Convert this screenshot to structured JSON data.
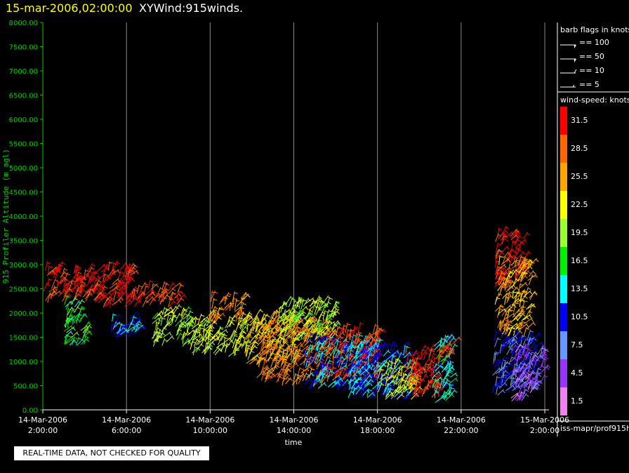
{
  "header": {
    "date_title": "15-mar-2006,02:00:00",
    "plot_title": "XYWind:915winds."
  },
  "notice": "REAL-TIME DATA, NOT CHECKED FOR QUALITY",
  "legend": {
    "barb_title": "barb flags in knots",
    "barbs": [
      {
        "label": "== 100",
        "icon": "pennant-barb-icon"
      },
      {
        "label": "== 50",
        "icon": "pennant-barb-icon"
      },
      {
        "label": "== 10",
        "icon": "full-barb-icon"
      },
      {
        "label": "== 5",
        "icon": "half-barb-icon"
      }
    ],
    "colorbar_title": "wind-speed: knots",
    "colorbar": [
      {
        "label": "31.5",
        "color": "#ff0000"
      },
      {
        "label": "28.5",
        "color": "#ff6600"
      },
      {
        "label": "25.5",
        "color": "#ffa500"
      },
      {
        "label": "22.5",
        "color": "#ffff00"
      },
      {
        "label": "19.5",
        "color": "#99ff33"
      },
      {
        "label": "16.5",
        "color": "#00ee00"
      },
      {
        "label": "13.5",
        "color": "#00ffff"
      },
      {
        "label": "10.5",
        "color": "#0000ff"
      },
      {
        "label": "7.5",
        "color": "#6699ff"
      },
      {
        "label": "4.5",
        "color": "#9933ff"
      },
      {
        "label": "1.5",
        "color": "#ee82ee"
      }
    ],
    "source": "iss-mapr/prof915h"
  },
  "chart_data": {
    "type": "scatter",
    "title": "XYWind:915winds.",
    "xlabel": "time",
    "ylabel": "915 Profiler Altitude (m agl)",
    "ylim": [
      0,
      8000
    ],
    "xlim_hours": [
      0,
      24.2
    ],
    "yticks": [
      "0.00",
      "500.00",
      "1000.00",
      "1500.00",
      "2000.00",
      "2500.00",
      "3000.00",
      "3500.00",
      "4000.00",
      "4500.00",
      "5000.00",
      "5500.00",
      "6000.00",
      "6500.00",
      "7000.00",
      "7500.00",
      "8000.00"
    ],
    "xticks": [
      {
        "hour": 0,
        "date": "14-Mar-2006",
        "time": "2:00:00"
      },
      {
        "hour": 4,
        "date": "14-Mar-2006",
        "time": "6:00:00"
      },
      {
        "hour": 8,
        "date": "14-Mar-2006",
        "time": "10:00:00"
      },
      {
        "hour": 12,
        "date": "14-Mar-2006",
        "time": "14:00:00"
      },
      {
        "hour": 16,
        "date": "14-Mar-2006",
        "time": "18:00:00"
      },
      {
        "hour": 20,
        "date": "14-Mar-2006",
        "time": "22:00:00"
      },
      {
        "hour": 24,
        "date": "15-Mar-2006",
        "time": "2:00:00"
      }
    ],
    "grid": "vertical",
    "wind_clusters": [
      {
        "t": [
          0.0,
          2.2
        ],
        "alt": [
          2200,
          2900
        ],
        "speed": 30
      },
      {
        "t": [
          2.2,
          4.3
        ],
        "alt": [
          2100,
          2900
        ],
        "speed": 31
      },
      {
        "t": [
          4.3,
          6.5
        ],
        "alt": [
          2100,
          2500
        ],
        "speed": 29
      },
      {
        "t": [
          1.0,
          2.0
        ],
        "alt": [
          1300,
          2200
        ],
        "speed": 17
      },
      {
        "t": [
          3.2,
          4.6
        ],
        "alt": [
          1500,
          1900
        ],
        "speed": 11
      },
      {
        "t": [
          5.2,
          7.0
        ],
        "alt": [
          1300,
          2000
        ],
        "speed": 20
      },
      {
        "t": [
          7.0,
          9.8
        ],
        "alt": [
          1100,
          1800
        ],
        "speed": 21
      },
      {
        "t": [
          7.9,
          9.5
        ],
        "alt": [
          1800,
          2300
        ],
        "speed": 26
      },
      {
        "t": [
          9.5,
          12.0
        ],
        "alt": [
          900,
          1900
        ],
        "speed": 23
      },
      {
        "t": [
          10.2,
          13.6
        ],
        "alt": [
          500,
          1800
        ],
        "speed": 27
      },
      {
        "t": [
          11.2,
          14.0
        ],
        "alt": [
          1400,
          2200
        ],
        "speed": 20
      },
      {
        "t": [
          12.5,
          15.5
        ],
        "alt": [
          400,
          1400
        ],
        "speed": 12
      },
      {
        "t": [
          13.5,
          16.0
        ],
        "alt": [
          600,
          1600
        ],
        "speed": 30
      },
      {
        "t": [
          14.5,
          17.5
        ],
        "alt": [
          200,
          1300
        ],
        "speed": 12
      },
      {
        "t": [
          16.0,
          17.9
        ],
        "alt": [
          200,
          900
        ],
        "speed": 22
      },
      {
        "t": [
          17.3,
          18.9
        ],
        "alt": [
          250,
          1200
        ],
        "speed": 31
      },
      {
        "t": [
          18.6,
          19.5
        ],
        "alt": [
          150,
          1400
        ],
        "speed": 14
      },
      {
        "t": [
          18.9,
          19.6
        ],
        "alt": [
          1000,
          1400
        ],
        "speed": 30
      },
      {
        "t": [
          21.6,
          23.0
        ],
        "alt": [
          2500,
          3600
        ],
        "speed": 31
      },
      {
        "t": [
          21.6,
          23.3
        ],
        "alt": [
          1500,
          3000
        ],
        "speed": 25
      },
      {
        "t": [
          21.5,
          23.5
        ],
        "alt": [
          300,
          1500
        ],
        "speed": 9
      },
      {
        "t": [
          22.3,
          23.9
        ],
        "alt": [
          150,
          1200
        ],
        "speed": 5
      }
    ]
  }
}
